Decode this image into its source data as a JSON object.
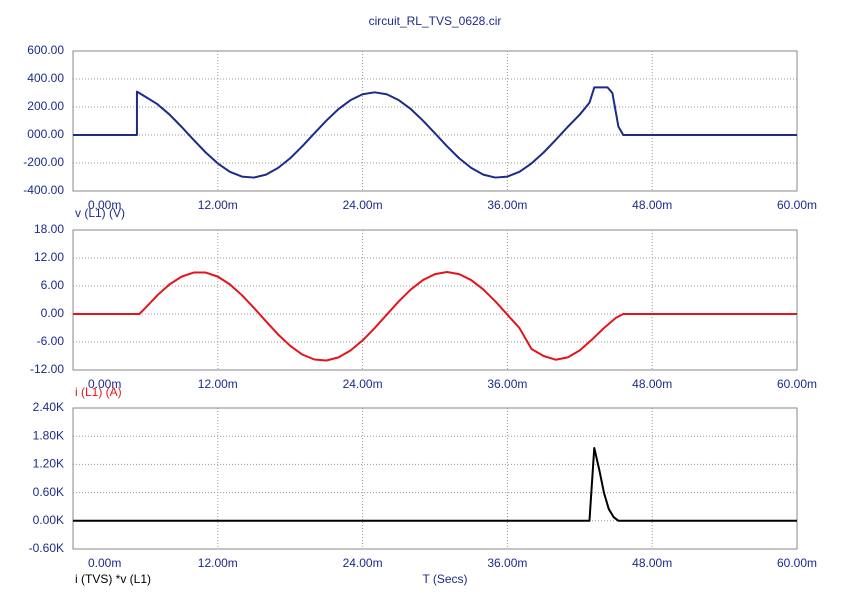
{
  "chart_data": [
    {
      "type": "line",
      "title": "circuit_RL_TVS_0628.cir",
      "ylabel": "v (L1) (V)",
      "color": "#1c2a8a",
      "x": [
        0,
        5.3,
        5.3,
        6,
        7,
        8,
        9,
        10,
        11,
        12,
        13,
        14,
        15,
        16,
        17,
        18,
        19,
        20,
        21,
        22,
        23,
        24,
        25,
        26,
        27,
        28,
        29,
        30,
        31,
        32,
        33,
        34,
        35,
        36,
        37,
        38,
        39,
        40,
        41,
        42,
        42.8,
        43.2,
        44.3,
        44.7,
        45.2,
        45.6,
        47,
        60
      ],
      "values": [
        0,
        0,
        310,
        273,
        220,
        146,
        58,
        -35,
        -125,
        -203,
        -263,
        -297,
        -304,
        -283,
        -235,
        -166,
        -81,
        12,
        103,
        185,
        249,
        291,
        305,
        291,
        249,
        185,
        103,
        12,
        -81,
        -166,
        -235,
        -283,
        -304,
        -297,
        -263,
        -203,
        -125,
        -35,
        58,
        146,
        230,
        340,
        340,
        300,
        60,
        0,
        0,
        0
      ],
      "xlim": [
        0,
        60
      ],
      "xticks": [
        {
          "value": 0,
          "label": "0.00m"
        },
        {
          "value": 12,
          "label": "12.00m"
        },
        {
          "value": 24,
          "label": "24.00m"
        },
        {
          "value": 36,
          "label": "36.00m"
        },
        {
          "value": 48,
          "label": "48.00m"
        },
        {
          "value": 60,
          "label": "60.00m"
        }
      ],
      "ylim": [
        -400,
        600
      ],
      "yticks": [
        {
          "value": -400,
          "label": "-400.00"
        },
        {
          "value": -200,
          "label": "-200.00"
        },
        {
          "value": 0,
          "label": "000.00"
        },
        {
          "value": 200,
          "label": "200.00"
        },
        {
          "value": 400,
          "label": "400.00"
        },
        {
          "value": 600,
          "label": "600.00"
        }
      ],
      "grid": true
    },
    {
      "type": "line",
      "ylabel": "i (L1) (A)",
      "color": "#e3141c",
      "x": [
        0,
        5.5,
        6,
        7,
        8,
        9,
        10,
        11,
        12,
        13,
        14,
        15,
        16,
        17,
        18,
        19,
        20,
        21,
        22,
        23,
        24,
        25,
        26,
        27,
        28,
        29,
        30,
        31,
        32,
        33,
        34,
        35,
        36,
        37,
        38,
        39,
        40,
        41,
        42,
        43,
        44,
        45,
        45.6,
        60
      ],
      "values": [
        0,
        0,
        1.31,
        4.03,
        6.35,
        8.01,
        8.89,
        8.89,
        8.01,
        6.35,
        4.03,
        1.31,
        -1.59,
        -4.39,
        -6.82,
        -8.68,
        -9.75,
        -9.97,
        -9.3,
        -7.83,
        -5.66,
        -3.02,
        -0.14,
        2.71,
        5.26,
        7.27,
        8.55,
        9,
        8.55,
        7.27,
        5.26,
        2.71,
        -0.14,
        -3.02,
        -7.5,
        -9,
        -9.8,
        -9.3,
        -7.8,
        -5.5,
        -3,
        -0.8,
        0,
        0
      ],
      "xlim": [
        0,
        60
      ],
      "xticks": [
        {
          "value": 0,
          "label": "0.00m"
        },
        {
          "value": 12,
          "label": "12.00m"
        },
        {
          "value": 24,
          "label": "24.00m"
        },
        {
          "value": 36,
          "label": "36.00m"
        },
        {
          "value": 48,
          "label": "48.00m"
        },
        {
          "value": 60,
          "label": "60.00m"
        }
      ],
      "ylim": [
        -12,
        18
      ],
      "yticks": [
        {
          "value": -12,
          "label": "-12.00"
        },
        {
          "value": -6,
          "label": "-6.00"
        },
        {
          "value": 0,
          "label": "0.00"
        },
        {
          "value": 6,
          "label": "6.00"
        },
        {
          "value": 12,
          "label": "12.00"
        },
        {
          "value": 18,
          "label": "18.00"
        }
      ],
      "grid": true
    },
    {
      "type": "line",
      "ylabel": "i (TVS) *v (L1)",
      "xlabel": "T  (Secs)",
      "color": "#000000",
      "x": [
        0,
        42.8,
        43.2,
        43.6,
        44,
        44.4,
        44.8,
        45.2,
        60
      ],
      "values": [
        0,
        0,
        1550,
        1100,
        600,
        250,
        80,
        0,
        0
      ],
      "xlim": [
        0,
        60
      ],
      "xticks": [
        {
          "value": 0,
          "label": "0.00m"
        },
        {
          "value": 12,
          "label": "12.00m"
        },
        {
          "value": 24,
          "label": "24.00m"
        },
        {
          "value": 36,
          "label": "36.00m"
        },
        {
          "value": 48,
          "label": "48.00m"
        },
        {
          "value": 60,
          "label": "60.00m"
        }
      ],
      "ylim": [
        -600,
        2400
      ],
      "yticks": [
        {
          "value": -600,
          "label": "-0.60K"
        },
        {
          "value": 0,
          "label": "0.00K"
        },
        {
          "value": 600,
          "label": "0.60K"
        },
        {
          "value": 1200,
          "label": "1.20K"
        },
        {
          "value": 1800,
          "label": "1.80K"
        },
        {
          "value": 2400,
          "label": "2.40K"
        }
      ],
      "grid": true
    }
  ]
}
